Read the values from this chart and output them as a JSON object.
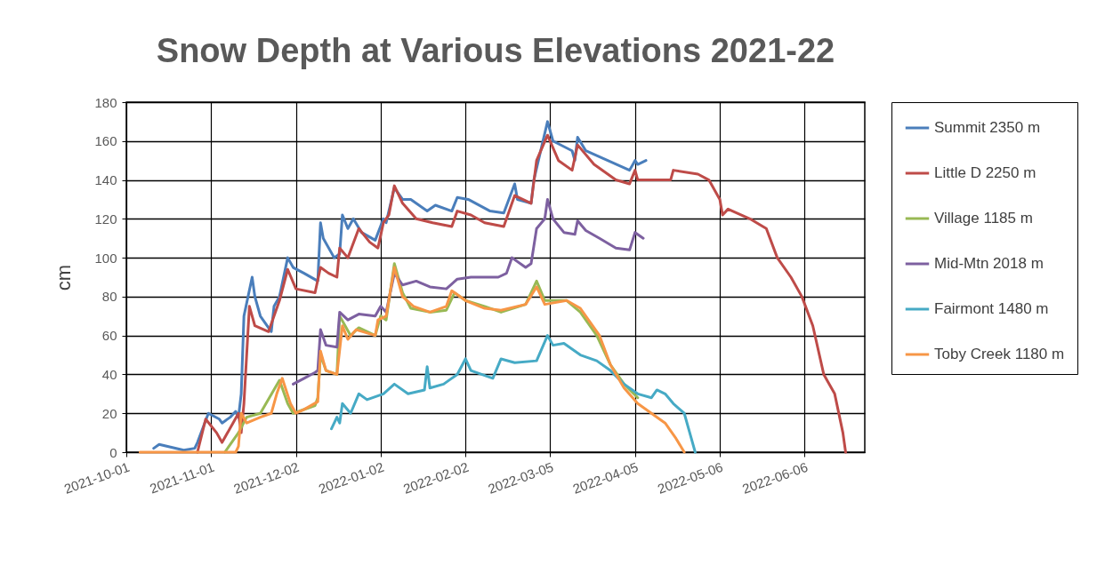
{
  "chart_data": {
    "type": "line",
    "title": "Snow Depth at Various Elevations 2021-22",
    "ylabel": "cm",
    "xlim": [
      "2021-10-01",
      "2022-06-28"
    ],
    "xticks": [
      "2021-10-01",
      "2021-11-01",
      "2021-12-02",
      "2022-01-02",
      "2022-02-02",
      "2022-03-05",
      "2022-04-05",
      "2022-05-06",
      "2022-06-06"
    ],
    "ylim": [
      0,
      180
    ],
    "yticks": [
      0,
      20,
      40,
      60,
      80,
      100,
      120,
      140,
      160,
      180
    ],
    "grid": true,
    "legend": "right",
    "marker": "none",
    "line_style": "solid",
    "series": [
      {
        "name": "Summit 2350 m",
        "color": "#4a7ebb",
        "x": [
          "2021-10-11",
          "2021-10-13",
          "2021-10-22",
          "2021-10-26",
          "2021-10-27",
          "2021-10-31",
          "2021-11-04",
          "2021-11-05",
          "2021-11-08",
          "2021-11-10",
          "2021-11-11",
          "2021-11-12",
          "2021-11-13",
          "2021-11-16",
          "2021-11-17",
          "2021-11-19",
          "2021-11-23",
          "2021-11-24",
          "2021-11-26",
          "2021-11-29",
          "2021-12-01",
          "2021-12-05",
          "2021-12-10",
          "2021-12-11",
          "2021-12-12",
          "2021-12-16",
          "2021-12-18",
          "2021-12-19",
          "2021-12-21",
          "2021-12-23",
          "2021-12-26",
          "2021-12-31",
          "2022-01-03",
          "2022-01-04",
          "2022-01-07",
          "2022-01-10",
          "2022-01-13",
          "2022-01-19",
          "2022-01-22",
          "2022-01-28",
          "2022-01-30",
          "2022-02-03",
          "2022-02-11",
          "2022-02-16",
          "2022-02-20",
          "2022-02-21",
          "2022-02-26",
          "2022-02-27",
          "2022-03-04",
          "2022-03-06",
          "2022-03-13",
          "2022-03-14",
          "2022-03-15",
          "2022-03-18",
          "2022-03-26",
          "2022-04-03",
          "2022-04-05",
          "2022-04-06",
          "2022-04-09"
        ],
        "values": [
          2,
          4,
          1,
          2,
          5,
          20,
          17,
          15,
          18,
          21,
          18,
          30,
          70,
          90,
          80,
          70,
          62,
          75,
          80,
          100,
          95,
          92,
          88,
          118,
          110,
          100,
          102,
          122,
          115,
          120,
          113,
          109,
          120,
          118,
          136,
          130,
          130,
          124,
          127,
          124,
          131,
          130,
          124,
          123,
          138,
          130,
          128,
          140,
          170,
          160,
          155,
          150,
          162,
          155,
          150,
          145,
          150,
          148,
          150
        ]
      },
      {
        "name": "Little D 2250 m",
        "color": "#be4b48",
        "x": [
          "2021-10-27",
          "2021-10-30",
          "2021-11-03",
          "2021-11-05",
          "2021-11-09",
          "2021-11-11",
          "2021-11-12",
          "2021-11-13",
          "2021-11-15",
          "2021-11-17",
          "2021-11-22",
          "2021-11-24",
          "2021-11-26",
          "2021-11-29",
          "2021-12-02",
          "2021-12-09",
          "2021-12-11",
          "2021-12-14",
          "2021-12-17",
          "2021-12-18",
          "2021-12-21",
          "2021-12-25",
          "2021-12-29",
          "2022-01-01",
          "2022-01-03",
          "2022-01-05",
          "2022-01-07",
          "2022-01-10",
          "2022-01-15",
          "2022-01-21",
          "2022-01-28",
          "2022-01-30",
          "2022-02-04",
          "2022-02-09",
          "2022-02-16",
          "2022-02-20",
          "2022-02-26",
          "2022-02-28",
          "2022-03-04",
          "2022-03-08",
          "2022-03-13",
          "2022-03-15",
          "2022-03-21",
          "2022-03-29",
          "2022-04-03",
          "2022-04-05",
          "2022-04-06",
          "2022-04-18",
          "2022-04-19",
          "2022-04-28",
          "2022-05-02",
          "2022-05-06",
          "2022-05-07",
          "2022-05-09",
          "2022-05-17",
          "2022-05-23",
          "2022-05-27",
          "2022-06-01",
          "2022-06-05",
          "2022-06-09",
          "2022-06-13",
          "2022-06-17",
          "2022-06-20",
          "2022-06-21"
        ],
        "values": [
          0,
          17,
          10,
          5,
          15,
          20,
          10,
          25,
          75,
          65,
          62,
          70,
          78,
          94,
          84,
          82,
          95,
          92,
          90,
          105,
          100,
          115,
          108,
          105,
          118,
          122,
          137,
          128,
          120,
          118,
          116,
          124,
          122,
          118,
          116,
          132,
          128,
          150,
          163,
          150,
          145,
          158,
          148,
          140,
          138,
          145,
          140,
          140,
          145,
          143,
          140,
          130,
          122,
          125,
          120,
          115,
          100,
          90,
          80,
          65,
          40,
          30,
          10,
          0
        ]
      },
      {
        "name": "Village 1185 m",
        "color": "#98b954",
        "x": [
          "2021-11-06",
          "2021-11-11",
          "2021-11-14",
          "2021-11-19",
          "2021-11-26",
          "2021-11-29",
          "2021-12-01",
          "2021-12-09",
          "2021-12-10",
          "2021-12-11",
          "2021-12-13",
          "2021-12-17",
          "2021-12-18",
          "2021-12-22",
          "2021-12-25",
          "2021-12-31",
          "2022-01-02",
          "2022-01-04",
          "2022-01-07",
          "2022-01-10",
          "2022-01-13",
          "2022-01-20",
          "2022-01-26",
          "2022-01-29",
          "2022-02-02",
          "2022-02-09",
          "2022-02-15",
          "2022-02-24",
          "2022-02-28",
          "2022-03-03",
          "2022-03-11",
          "2022-03-16",
          "2022-03-22",
          "2022-03-27",
          "2022-04-01",
          "2022-04-06"
        ],
        "values": [
          0,
          10,
          18,
          20,
          37,
          25,
          20,
          24,
          28,
          50,
          42,
          40,
          70,
          60,
          64,
          60,
          70,
          68,
          97,
          82,
          74,
          72,
          73,
          82,
          78,
          75,
          72,
          76,
          88,
          78,
          78,
          72,
          60,
          45,
          35,
          28
        ]
      },
      {
        "name": "Mid-Mtn 2018 m",
        "color": "#7d60a0",
        "x": [
          "2021-12-01",
          "2021-12-05",
          "2021-12-09",
          "2021-12-10",
          "2021-12-11",
          "2021-12-13",
          "2021-12-17",
          "2021-12-18",
          "2021-12-21",
          "2021-12-25",
          "2021-12-31",
          "2022-01-02",
          "2022-01-04",
          "2022-01-07",
          "2022-01-10",
          "2022-01-15",
          "2022-01-20",
          "2022-01-26",
          "2022-01-30",
          "2022-02-04",
          "2022-02-14",
          "2022-02-17",
          "2022-02-19",
          "2022-02-24",
          "2022-02-26",
          "2022-02-28",
          "2022-03-03",
          "2022-03-04",
          "2022-03-06",
          "2022-03-10",
          "2022-03-14",
          "2022-03-15",
          "2022-03-18",
          "2022-03-23",
          "2022-03-29",
          "2022-04-03",
          "2022-04-05",
          "2022-04-08"
        ],
        "values": [
          35,
          38,
          41,
          42,
          63,
          55,
          54,
          72,
          68,
          71,
          70,
          75,
          72,
          92,
          86,
          88,
          85,
          84,
          89,
          90,
          90,
          92,
          100,
          95,
          97,
          115,
          120,
          130,
          120,
          113,
          112,
          119,
          114,
          110,
          105,
          104,
          113,
          110
        ]
      },
      {
        "name": "Fairmont 1480 m",
        "color": "#46aac5",
        "x": [
          "2021-12-15",
          "2021-12-17",
          "2021-12-18",
          "2021-12-19",
          "2021-12-22",
          "2021-12-25",
          "2021-12-28",
          "2022-01-03",
          "2022-01-07",
          "2022-01-12",
          "2022-01-18",
          "2022-01-19",
          "2022-01-20",
          "2022-01-25",
          "2022-01-30",
          "2022-02-02",
          "2022-02-04",
          "2022-02-12",
          "2022-02-15",
          "2022-02-20",
          "2022-02-28",
          "2022-03-04",
          "2022-03-06",
          "2022-03-10",
          "2022-03-16",
          "2022-03-22",
          "2022-03-27",
          "2022-04-01",
          "2022-04-06",
          "2022-04-11",
          "2022-04-13",
          "2022-04-16",
          "2022-04-19",
          "2022-04-23",
          "2022-04-25",
          "2022-04-27"
        ],
        "values": [
          12,
          18,
          15,
          25,
          20,
          30,
          27,
          30,
          35,
          30,
          32,
          44,
          33,
          35,
          40,
          48,
          42,
          38,
          48,
          46,
          47,
          60,
          55,
          56,
          50,
          47,
          42,
          35,
          30,
          28,
          32,
          30,
          25,
          20,
          10,
          0
        ]
      },
      {
        "name": "Toby Creek 1180 m",
        "color": "#f79646",
        "x": [
          "2021-10-06",
          "2021-11-10",
          "2021-11-11",
          "2021-11-12",
          "2021-11-14",
          "2021-11-19",
          "2021-11-23",
          "2021-11-25",
          "2021-11-27",
          "2021-11-30",
          "2021-12-02",
          "2021-12-05",
          "2021-12-10",
          "2021-12-11",
          "2021-12-13",
          "2021-12-17",
          "2021-12-19",
          "2021-12-21",
          "2021-12-24",
          "2021-12-31",
          "2022-01-01",
          "2022-01-04",
          "2022-01-07",
          "2022-01-10",
          "2022-01-14",
          "2022-01-20",
          "2022-01-26",
          "2022-01-28",
          "2022-02-02",
          "2022-02-09",
          "2022-02-15",
          "2022-02-24",
          "2022-02-28",
          "2022-03-03",
          "2022-03-11",
          "2022-03-16",
          "2022-03-23",
          "2022-03-27",
          "2022-04-01",
          "2022-04-06",
          "2022-04-11",
          "2022-04-16",
          "2022-04-20",
          "2022-04-23"
        ],
        "values": [
          0,
          0,
          3,
          20,
          15,
          18,
          20,
          30,
          38,
          25,
          20,
          22,
          26,
          52,
          42,
          40,
          65,
          58,
          63,
          60,
          68,
          70,
          95,
          80,
          75,
          72,
          75,
          83,
          78,
          74,
          73,
          76,
          85,
          76,
          78,
          74,
          60,
          45,
          33,
          25,
          20,
          15,
          7,
          0
        ]
      }
    ]
  }
}
